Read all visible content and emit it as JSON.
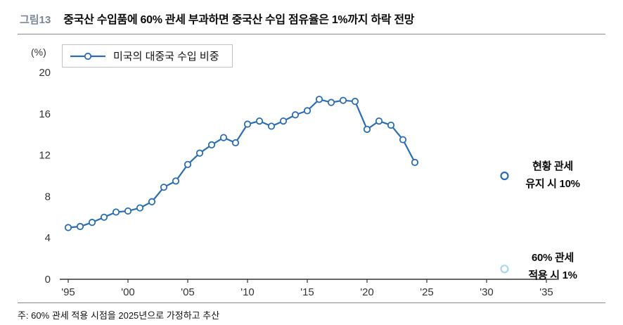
{
  "header": {
    "figure_label": "그림13",
    "title": "중국산 수입품에 60% 관세 부과하면 중국산 수입 점유율은 1%까지 하락 전망"
  },
  "note": "주: 60% 관세 적용 시점을 2025년으로 가정하고 추산",
  "colors": {
    "line": "#2a6db4",
    "marker_fill": "#ffffff",
    "projection_light": "#a9d7ec",
    "axis": "#333333",
    "rule": "#8a8a8a",
    "figure_label": "#7b8798"
  },
  "chart_data": {
    "type": "line",
    "title": "중국산 수입품에 60% 관세 부과하면 중국산 수입 점유율은 1%까지 하락 전망",
    "ylabel": "(%)",
    "xlabel": "",
    "ylim": [
      0,
      20
    ],
    "xlim": [
      1995,
      2035
    ],
    "yticks": [
      0,
      4,
      8,
      12,
      16,
      20
    ],
    "xticks": [
      "'95",
      "'00",
      "'05",
      "'10",
      "'15",
      "'20",
      "'25",
      "'30",
      "'35"
    ],
    "xtick_years": [
      1995,
      2000,
      2005,
      2010,
      2015,
      2020,
      2025,
      2030,
      2035
    ],
    "grid": false,
    "legend_position": "top-left",
    "series": [
      {
        "name": "미국의 대중국 수입 비중",
        "x": [
          1995,
          1996,
          1997,
          1998,
          1999,
          2000,
          2001,
          2002,
          2003,
          2004,
          2005,
          2006,
          2007,
          2008,
          2009,
          2010,
          2011,
          2012,
          2013,
          2014,
          2015,
          2016,
          2017,
          2018,
          2019,
          2020,
          2021,
          2022,
          2023,
          2024
        ],
        "values": [
          5.0,
          5.1,
          5.5,
          6.0,
          6.5,
          6.6,
          6.9,
          7.5,
          8.9,
          9.5,
          11.1,
          12.2,
          13.0,
          13.7,
          13.2,
          15.0,
          15.3,
          14.8,
          15.3,
          15.9,
          16.3,
          17.4,
          17.1,
          17.3,
          17.2,
          14.5,
          15.3,
          14.9,
          13.5,
          11.3
        ]
      }
    ],
    "projections": [
      {
        "value": 10,
        "year_position": 2031.5,
        "line1": "현황 관세",
        "line2": "유지 시 10%",
        "color": "#2a6db4"
      },
      {
        "value": 1,
        "year_position": 2031.5,
        "line1": "60% 관세",
        "line2": "적용 시 1%",
        "color": "#a9d7ec"
      }
    ]
  }
}
